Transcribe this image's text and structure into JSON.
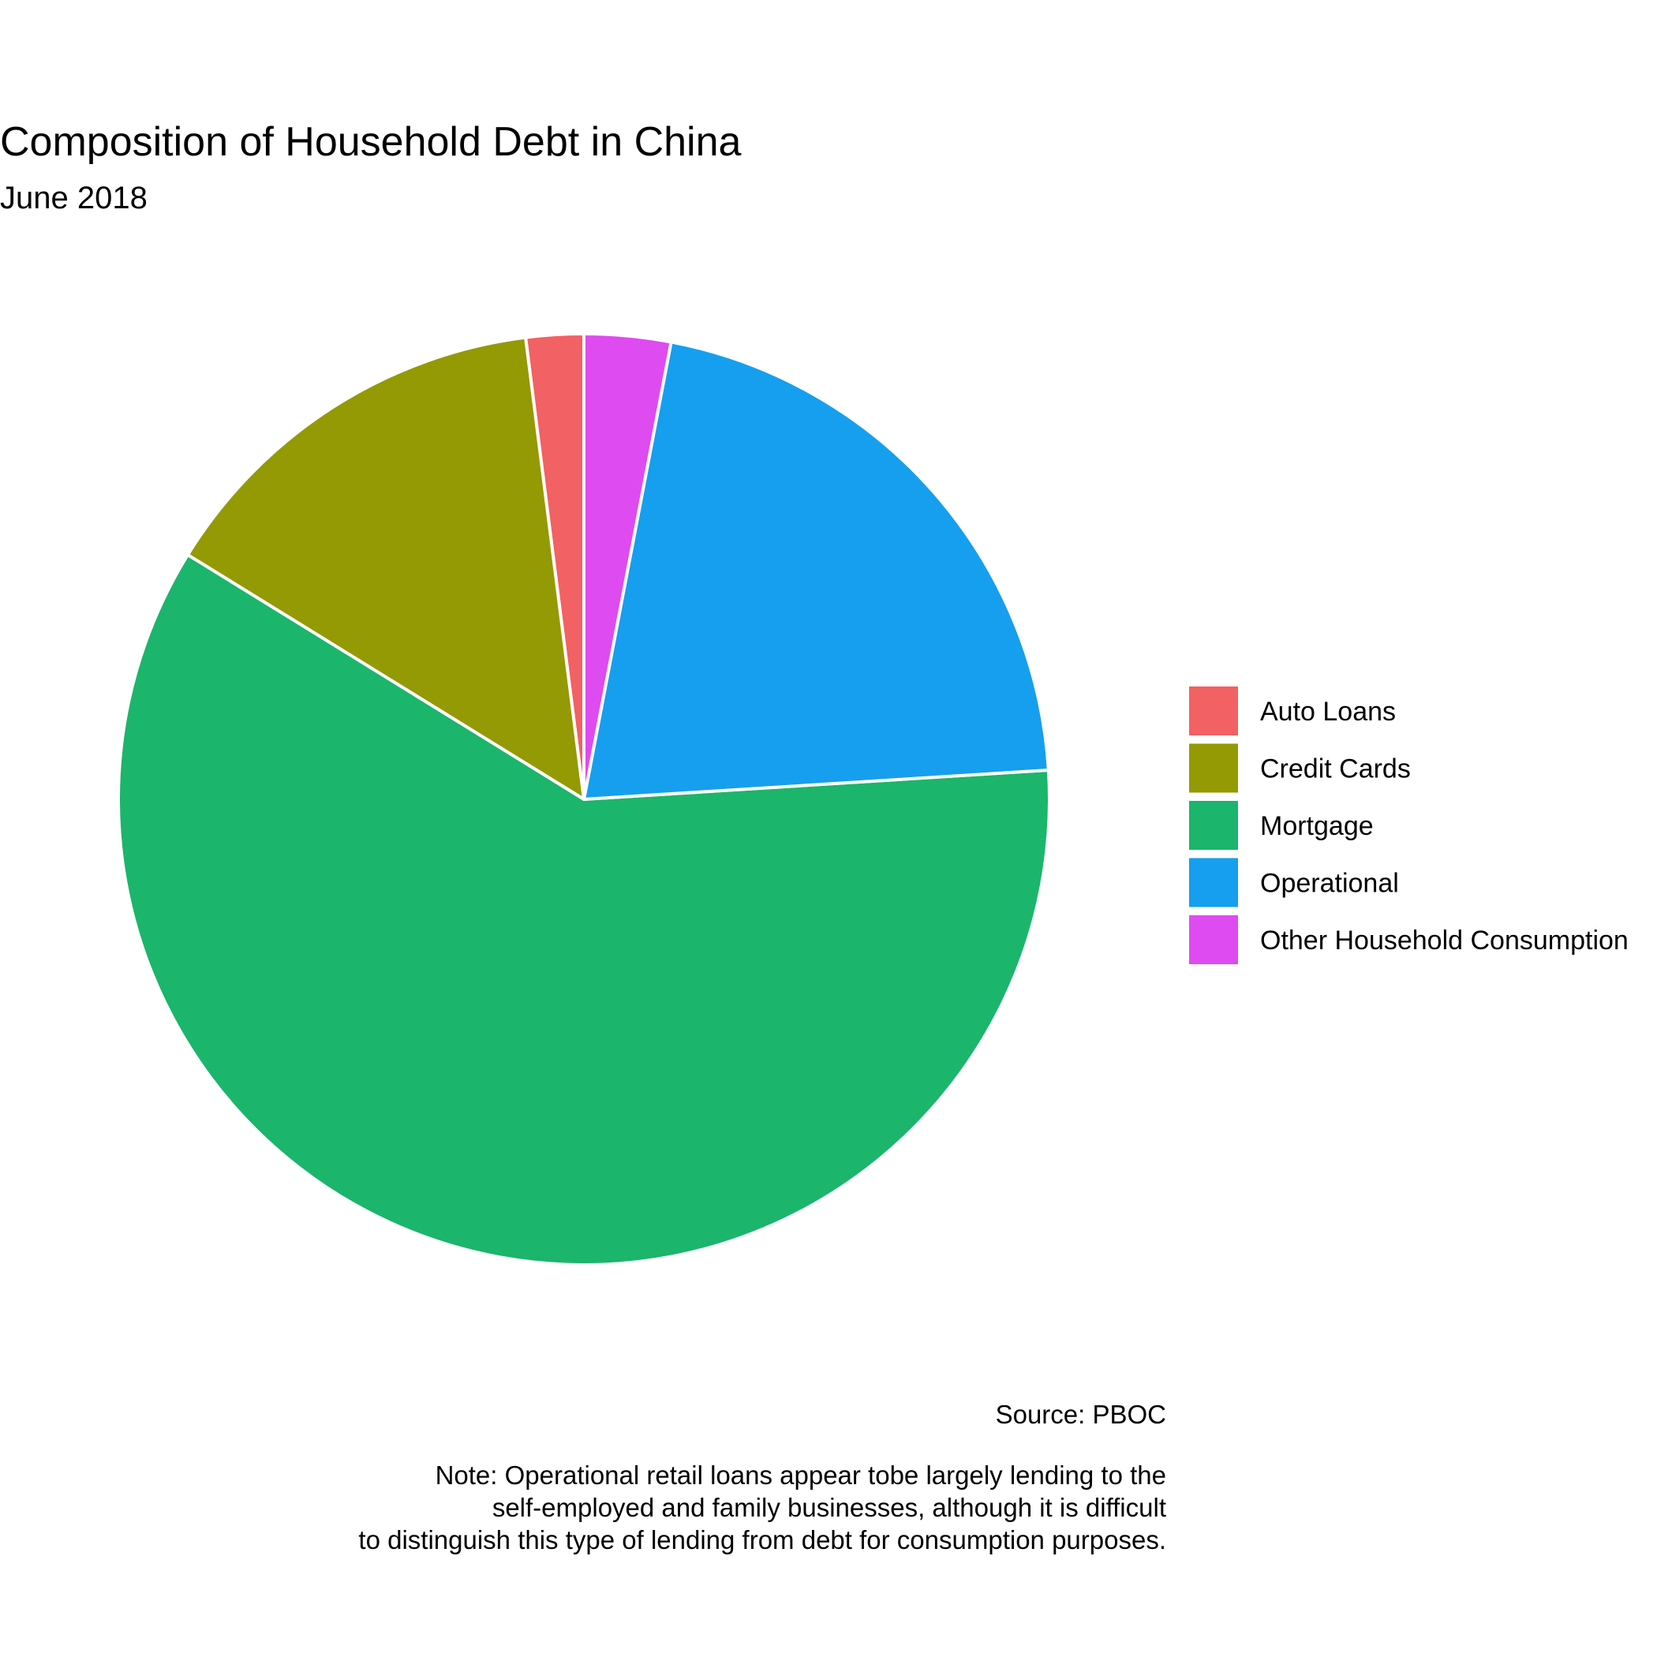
{
  "chart_data": {
    "type": "pie",
    "title": "Composition of Household Debt in China",
    "subtitle": "June 2018",
    "categories": [
      "Auto Loans",
      "Credit Cards",
      "Mortgage",
      "Operational",
      "Other Household Consumption"
    ],
    "values": [
      2.0,
      14.2,
      59.8,
      21.0,
      3.0
    ],
    "colors": [
      "#F26163",
      "#939A03",
      "#1BB56C",
      "#169FEE",
      "#DE4BF0"
    ],
    "legend_position": "right",
    "source": "Source: PBOC",
    "note_lines": [
      "Note: Operational retail loans appear tobe largely lending to the",
      "self-employed and family businesses, although it is difficult",
      "to distinguish this type of lending from debt for consumption purposes."
    ]
  }
}
